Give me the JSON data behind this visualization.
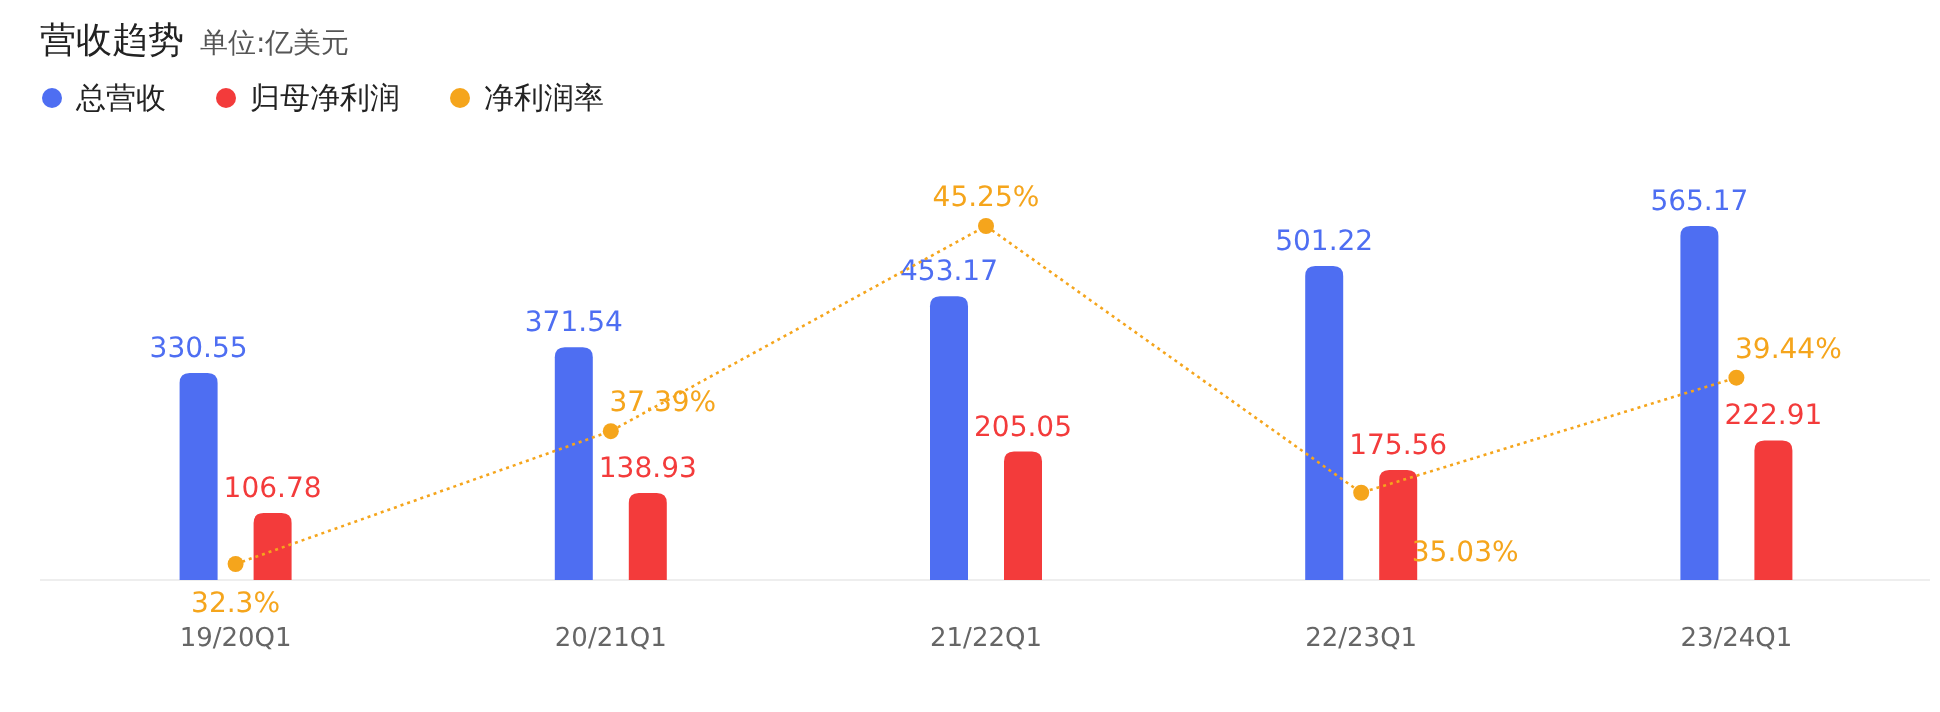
{
  "chart_data": {
    "type": "bar",
    "title": "营收趋势",
    "subtitle": "单位:亿美元",
    "categories": [
      "19/20Q1",
      "20/21Q1",
      "21/22Q1",
      "22/23Q1",
      "23/24Q1"
    ],
    "series": [
      {
        "name": "总营收",
        "color": "#4e6ef2",
        "values": [
          330.55,
          371.54,
          453.17,
          501.22,
          565.17
        ]
      },
      {
        "name": "归母净利润",
        "color": "#f33b3b",
        "values": [
          106.78,
          138.93,
          205.05,
          175.56,
          222.91
        ]
      },
      {
        "name": "净利润率",
        "type": "line",
        "axis": "y2",
        "color": "#f5a51c",
        "line_style": "dotted",
        "marker": "circle",
        "values": [
          32.3,
          37.39,
          45.25,
          35.03,
          39.44
        ],
        "value_labels": [
          "32.3%",
          "37.39%",
          "45.25%",
          "35.03%",
          "39.44%"
        ]
      }
    ],
    "data_labels": true,
    "legend": "top left",
    "grid": false
  }
}
